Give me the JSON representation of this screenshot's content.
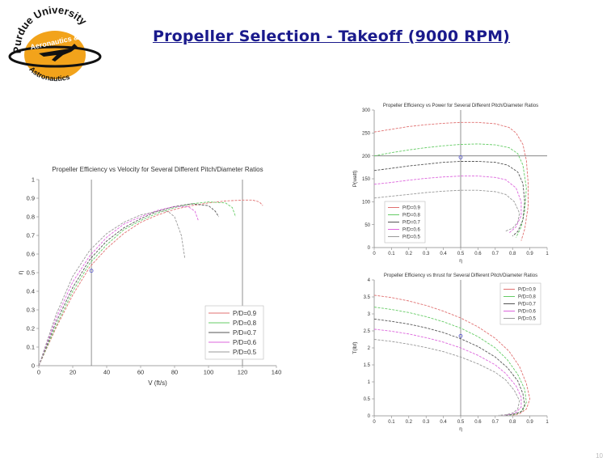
{
  "slide": {
    "title": "Propeller Selection - Takeoff (9000 RPM)",
    "page_number": "10"
  },
  "logo": {
    "top_text": "Purdue University",
    "middle_text": "Aeronautics &",
    "bottom_text": "Astronautics",
    "colors": {
      "gold": "#f2a31b",
      "black": "#111111"
    }
  },
  "chart_data": [
    {
      "type": "line",
      "title": "Propeller Efficiency vs Velocity for Several Different Pitch/Diameter Ratios",
      "xlabel": "V (ft/s)",
      "ylabel": "η",
      "xlim": [
        0,
        140
      ],
      "ylim": [
        0,
        1
      ],
      "xticks": [
        0,
        20,
        40,
        60,
        80,
        100,
        120,
        140
      ],
      "yticks": [
        0,
        0.1,
        0.2,
        0.3,
        0.4,
        0.5,
        0.6,
        0.7,
        0.8,
        0.9,
        1
      ],
      "reference_lines": {
        "x": [
          31,
          120
        ]
      },
      "marker": {
        "x": 31,
        "y": 0.51
      },
      "legend_position": "bottom-right",
      "series": [
        {
          "name": "P/D=0.9",
          "color": "#e07070",
          "x": [
            0,
            10,
            20,
            30,
            40,
            50,
            60,
            70,
            80,
            90,
            100,
            110,
            120,
            126,
            130,
            132
          ],
          "y": [
            0,
            0.2,
            0.38,
            0.53,
            0.63,
            0.71,
            0.77,
            0.81,
            0.84,
            0.86,
            0.875,
            0.885,
            0.89,
            0.89,
            0.88,
            0.86
          ]
        },
        {
          "name": "P/D=0.8",
          "color": "#66cc66",
          "x": [
            0,
            10,
            20,
            30,
            40,
            50,
            60,
            70,
            80,
            90,
            100,
            110,
            114,
            116
          ],
          "y": [
            0,
            0.21,
            0.4,
            0.55,
            0.65,
            0.73,
            0.78,
            0.82,
            0.85,
            0.87,
            0.88,
            0.875,
            0.85,
            0.8
          ]
        },
        {
          "name": "P/D=0.7",
          "color": "#555555",
          "x": [
            0,
            10,
            20,
            30,
            40,
            50,
            60,
            70,
            80,
            90,
            100,
            104,
            106
          ],
          "y": [
            0,
            0.23,
            0.42,
            0.57,
            0.67,
            0.74,
            0.79,
            0.83,
            0.855,
            0.87,
            0.86,
            0.83,
            0.8
          ]
        },
        {
          "name": "P/D=0.6",
          "color": "#dd66dd",
          "x": [
            0,
            10,
            20,
            30,
            40,
            50,
            60,
            70,
            80,
            88,
            92,
            94
          ],
          "y": [
            0,
            0.25,
            0.45,
            0.59,
            0.69,
            0.76,
            0.8,
            0.835,
            0.855,
            0.855,
            0.83,
            0.78
          ]
        },
        {
          "name": "P/D=0.5",
          "color": "#999999",
          "x": [
            0,
            10,
            20,
            30,
            40,
            50,
            60,
            70,
            76,
            80,
            84,
            86
          ],
          "y": [
            0,
            0.27,
            0.48,
            0.62,
            0.71,
            0.77,
            0.81,
            0.83,
            0.83,
            0.8,
            0.7,
            0.58
          ]
        }
      ]
    },
    {
      "type": "line",
      "title": "Propeller Efficiency vs Power for Several Different Pitch/Diameter Ratios",
      "xlabel": "η",
      "ylabel": "P(watt)",
      "xlim": [
        0,
        1
      ],
      "ylim": [
        0,
        300
      ],
      "xticks": [
        0,
        0.1,
        0.2,
        0.3,
        0.4,
        0.5,
        0.6,
        0.7,
        0.8,
        0.9,
        1
      ],
      "yticks": [
        0,
        50,
        100,
        150,
        200,
        250,
        300
      ],
      "reference_lines": {
        "x": [
          0.5
        ],
        "y": [
          200
        ]
      },
      "marker": {
        "x": 0.5,
        "y": 197
      },
      "legend_position": "bottom-left",
      "series": [
        {
          "name": "P/D=0.9",
          "color": "#e07070",
          "x": [
            0,
            0.1,
            0.2,
            0.3,
            0.4,
            0.5,
            0.6,
            0.7,
            0.78,
            0.82,
            0.86,
            0.88,
            0.89,
            0.89,
            0.87,
            0.85
          ],
          "y": [
            252,
            258,
            264,
            268,
            271,
            273,
            273,
            270,
            262,
            250,
            225,
            190,
            140,
            90,
            40,
            15
          ]
        },
        {
          "name": "P/D=0.8",
          "color": "#66cc66",
          "x": [
            0,
            0.1,
            0.2,
            0.3,
            0.4,
            0.5,
            0.6,
            0.7,
            0.78,
            0.83,
            0.86,
            0.88,
            0.87,
            0.85,
            0.82
          ],
          "y": [
            200,
            207,
            213,
            218,
            222,
            225,
            226,
            224,
            218,
            205,
            180,
            130,
            80,
            45,
            22
          ]
        },
        {
          "name": "P/D=0.7",
          "color": "#555555",
          "x": [
            0,
            0.1,
            0.2,
            0.3,
            0.4,
            0.5,
            0.6,
            0.7,
            0.77,
            0.83,
            0.86,
            0.87,
            0.86,
            0.83,
            0.8
          ],
          "y": [
            168,
            173,
            178,
            182,
            186,
            188,
            188,
            186,
            180,
            165,
            140,
            100,
            60,
            35,
            25
          ]
        },
        {
          "name": "P/D=0.6",
          "color": "#dd66dd",
          "x": [
            0,
            0.1,
            0.2,
            0.3,
            0.4,
            0.5,
            0.6,
            0.7,
            0.76,
            0.82,
            0.85,
            0.85,
            0.82,
            0.78
          ],
          "y": [
            138,
            142,
            147,
            151,
            154,
            156,
            156,
            153,
            148,
            130,
            100,
            70,
            45,
            32
          ]
        },
        {
          "name": "P/D=0.5",
          "color": "#999999",
          "x": [
            0,
            0.1,
            0.2,
            0.3,
            0.4,
            0.5,
            0.6,
            0.7,
            0.76,
            0.81,
            0.84,
            0.83,
            0.8,
            0.76
          ],
          "y": [
            108,
            112,
            116,
            120,
            123,
            125,
            125,
            122,
            116,
            100,
            75,
            55,
            42,
            36
          ]
        }
      ]
    },
    {
      "type": "line",
      "title": "Propeller Efficiency vs thrust for Several Different Pitch/Diameter Ratios",
      "xlabel": "η",
      "ylabel": "T(lbf)",
      "xlim": [
        0,
        1
      ],
      "ylim": [
        0,
        4
      ],
      "xticks": [
        0,
        0.1,
        0.2,
        0.3,
        0.4,
        0.5,
        0.6,
        0.7,
        0.8,
        0.9,
        1
      ],
      "yticks": [
        0,
        0.5,
        1,
        1.5,
        2,
        2.5,
        3,
        3.5,
        4
      ],
      "reference_lines": {
        "x": [
          0.5
        ]
      },
      "marker": {
        "x": 0.5,
        "y": 2.35
      },
      "legend_position": "top-right",
      "series": [
        {
          "name": "P/D=0.9",
          "color": "#e07070",
          "x": [
            0,
            0.1,
            0.2,
            0.3,
            0.4,
            0.5,
            0.6,
            0.7,
            0.78,
            0.84,
            0.88,
            0.9,
            0.88,
            0.84,
            0.8
          ],
          "y": [
            3.55,
            3.48,
            3.38,
            3.25,
            3.08,
            2.88,
            2.62,
            2.28,
            1.9,
            1.45,
            0.95,
            0.5,
            0.2,
            0.06,
            0.02
          ]
        },
        {
          "name": "P/D=0.8",
          "color": "#66cc66",
          "x": [
            0,
            0.1,
            0.2,
            0.3,
            0.4,
            0.5,
            0.6,
            0.7,
            0.77,
            0.83,
            0.87,
            0.88,
            0.86,
            0.82,
            0.78
          ],
          "y": [
            3.2,
            3.13,
            3.04,
            2.92,
            2.77,
            2.58,
            2.33,
            2.0,
            1.65,
            1.22,
            0.78,
            0.4,
            0.16,
            0.05,
            0.02
          ]
        },
        {
          "name": "P/D=0.7",
          "color": "#555555",
          "x": [
            0,
            0.1,
            0.2,
            0.3,
            0.4,
            0.5,
            0.6,
            0.7,
            0.77,
            0.83,
            0.86,
            0.87,
            0.85,
            0.8,
            0.76
          ],
          "y": [
            2.85,
            2.78,
            2.7,
            2.59,
            2.45,
            2.27,
            2.04,
            1.73,
            1.42,
            1.03,
            0.65,
            0.32,
            0.12,
            0.04,
            0.02
          ]
        },
        {
          "name": "P/D=0.6",
          "color": "#dd66dd",
          "x": [
            0,
            0.1,
            0.2,
            0.3,
            0.4,
            0.5,
            0.6,
            0.7,
            0.76,
            0.82,
            0.85,
            0.85,
            0.82,
            0.78,
            0.74
          ],
          "y": [
            2.55,
            2.49,
            2.41,
            2.3,
            2.17,
            2.0,
            1.78,
            1.5,
            1.25,
            0.88,
            0.55,
            0.26,
            0.1,
            0.04,
            0.02
          ]
        },
        {
          "name": "P/D=0.5",
          "color": "#999999",
          "x": [
            0,
            0.1,
            0.2,
            0.3,
            0.4,
            0.5,
            0.6,
            0.7,
            0.76,
            0.81,
            0.84,
            0.83,
            0.8,
            0.76,
            0.72
          ],
          "y": [
            2.25,
            2.19,
            2.11,
            2.01,
            1.89,
            1.73,
            1.53,
            1.28,
            1.06,
            0.75,
            0.45,
            0.2,
            0.08,
            0.03,
            0.02
          ]
        }
      ]
    }
  ]
}
